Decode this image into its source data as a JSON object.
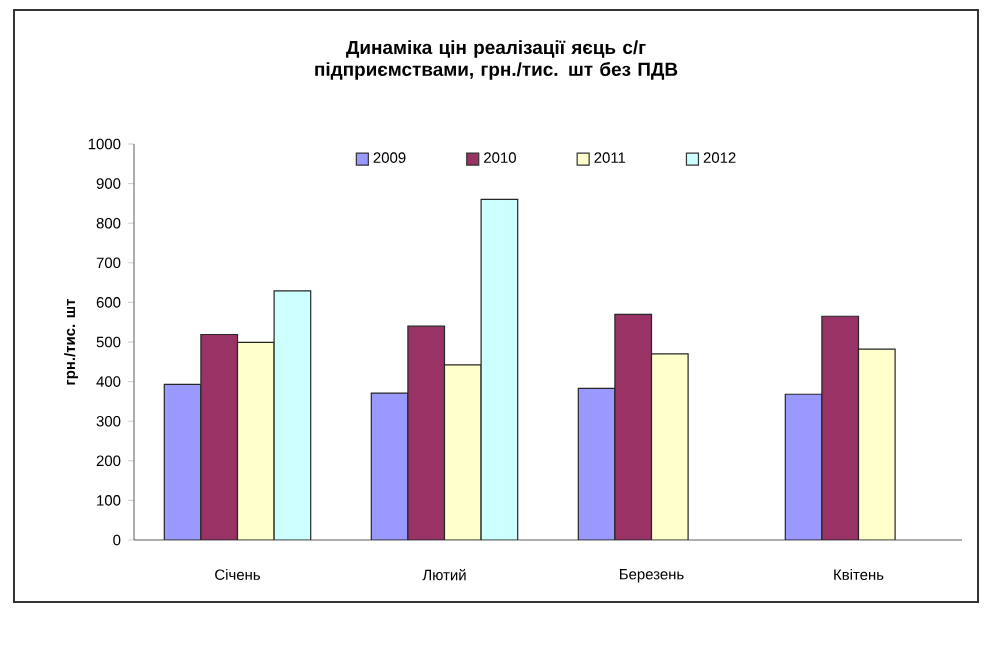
{
  "chart_data": {
    "type": "bar",
    "title": "Динаміка цін реалізації яєць с/г підприємствами, грн./тис. шт без ПДВ",
    "ylabel": "грн./тис. шт",
    "categories": [
      "Січень",
      "Лютий",
      "Березень",
      "Квітень"
    ],
    "series": [
      {
        "name": "2009",
        "color": "#9999ff",
        "values": [
          393,
          371,
          383,
          368
        ]
      },
      {
        "name": "2010",
        "color": "#993366",
        "values": [
          519,
          540,
          570,
          565
        ]
      },
      {
        "name": "2011",
        "color": "#ffffcc",
        "values": [
          499,
          442,
          470,
          482
        ]
      },
      {
        "name": "2012",
        "color": "#ccffff",
        "values": [
          629,
          860,
          null,
          null
        ]
      }
    ],
    "ylim": [
      0,
      1000
    ],
    "yticks": [
      0,
      100,
      200,
      300,
      400,
      500,
      600,
      700,
      800,
      900,
      1000
    ],
    "grid": false,
    "legend": "top"
  }
}
